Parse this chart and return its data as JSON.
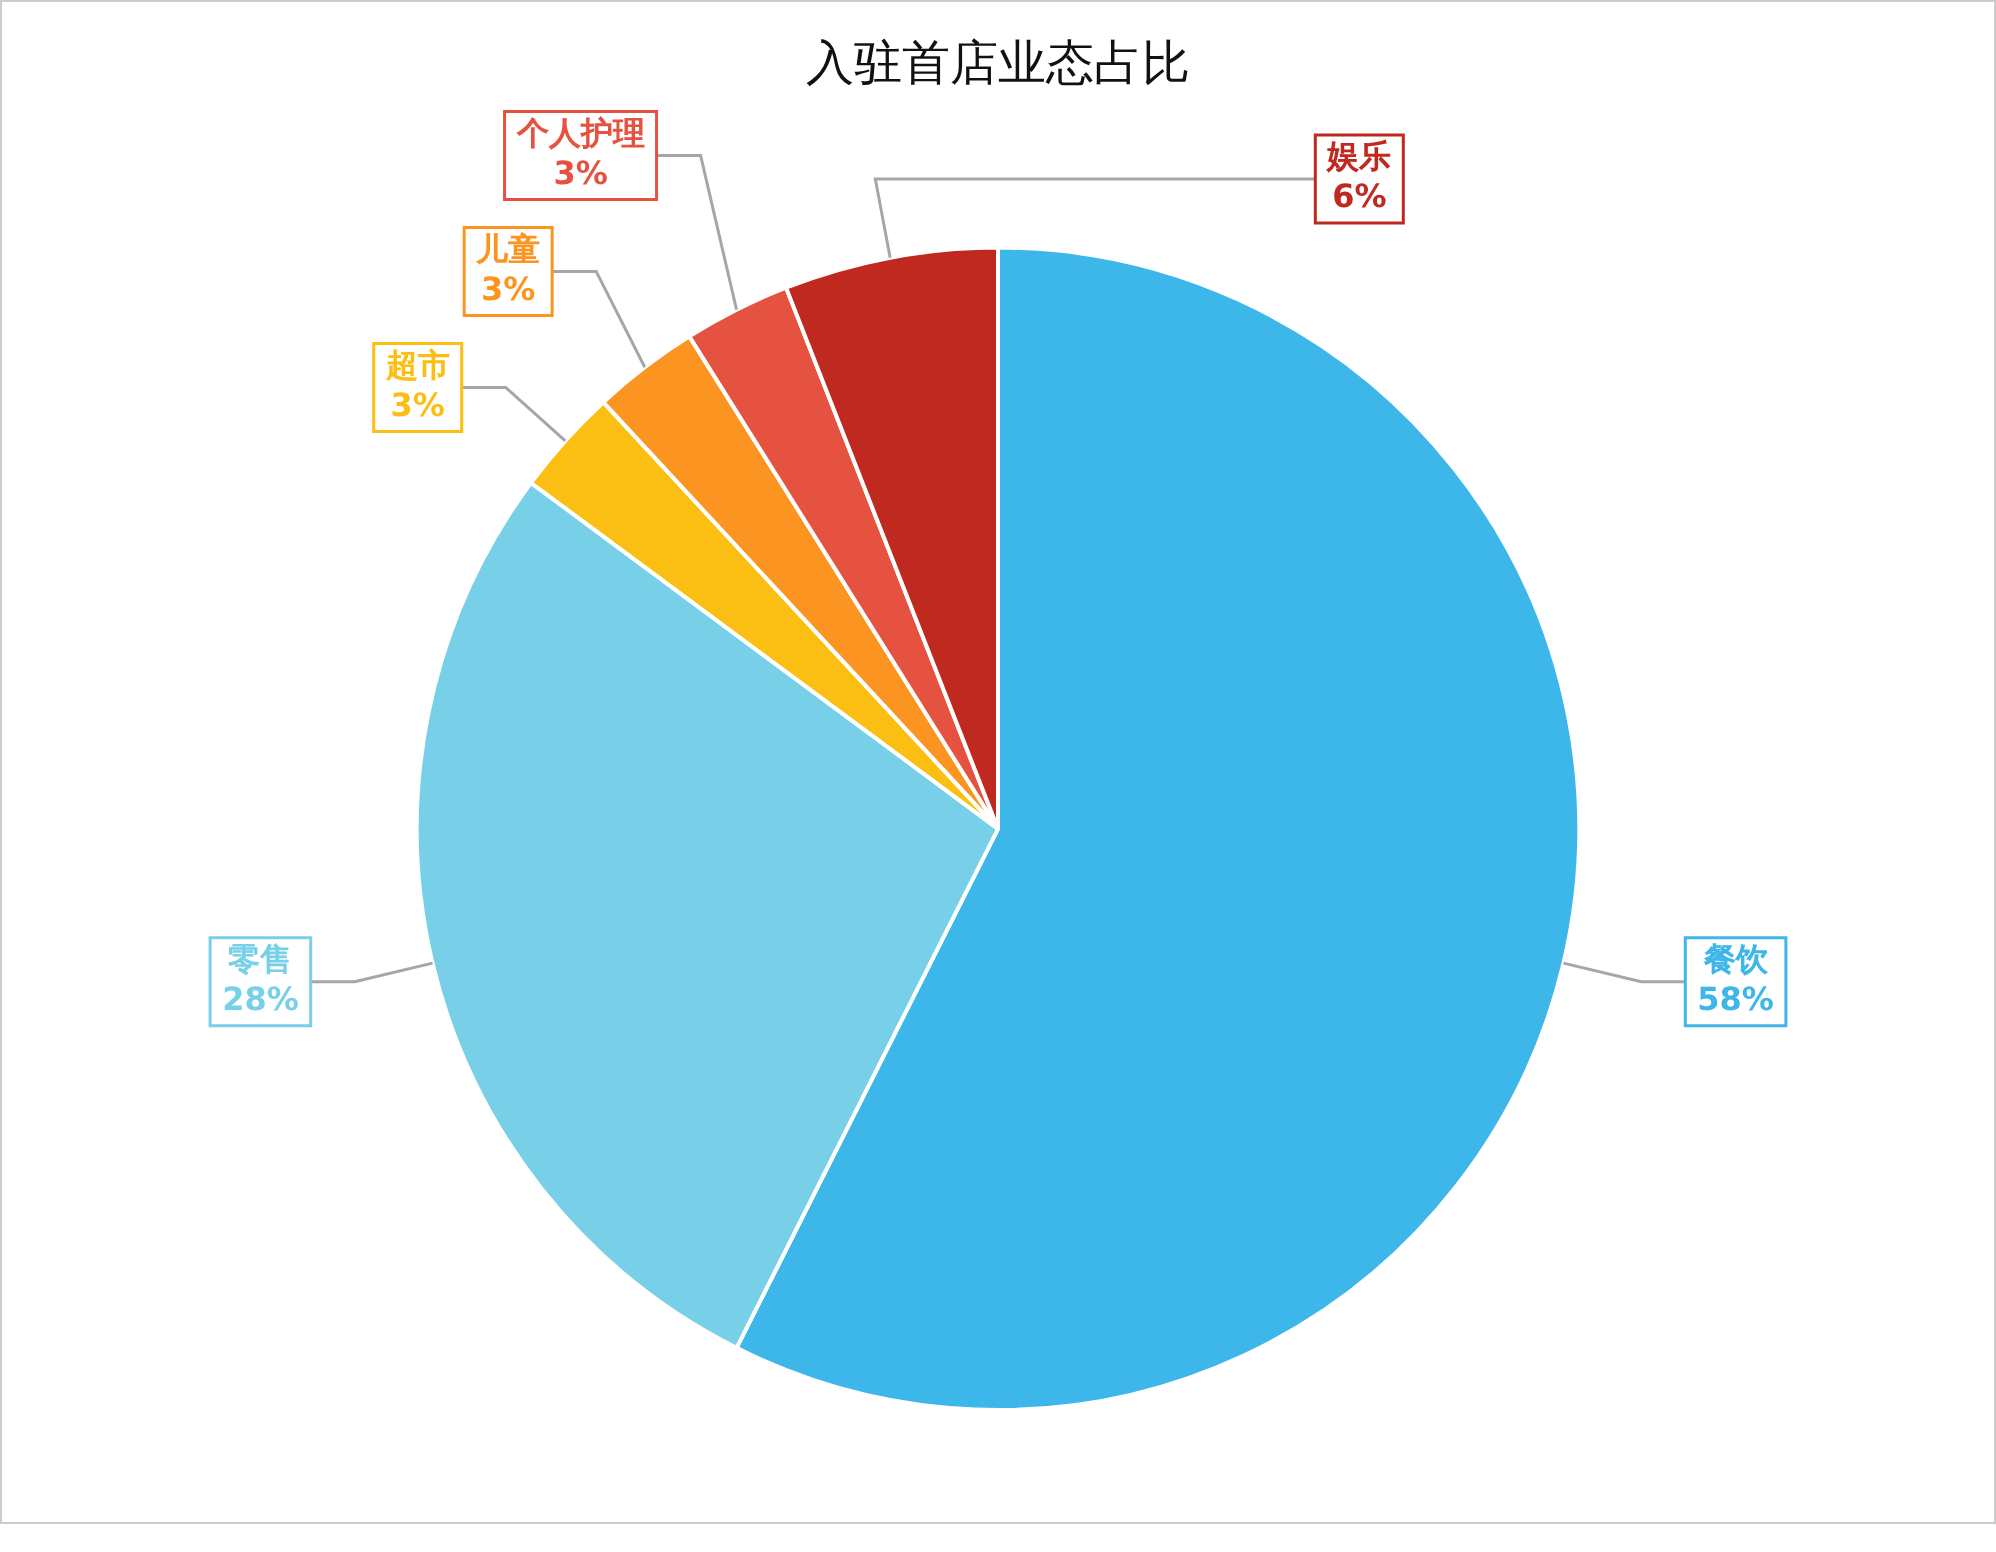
{
  "chart_data": {
    "type": "pie",
    "title": "入驻首店业态占比",
    "categories": [
      "餐饮",
      "零售",
      "超市",
      "儿童",
      "个人护理",
      "娱乐"
    ],
    "values": [
      58,
      28,
      3,
      3,
      3,
      6
    ],
    "colors": [
      "#3db6ea",
      "#78d0e8",
      "#fbbf14",
      "#fb9420",
      "#e55340",
      "#c0291f"
    ],
    "value_labels": [
      "58%",
      "28%",
      "3%",
      "3%",
      "3%",
      "6%"
    ],
    "legend": false
  }
}
